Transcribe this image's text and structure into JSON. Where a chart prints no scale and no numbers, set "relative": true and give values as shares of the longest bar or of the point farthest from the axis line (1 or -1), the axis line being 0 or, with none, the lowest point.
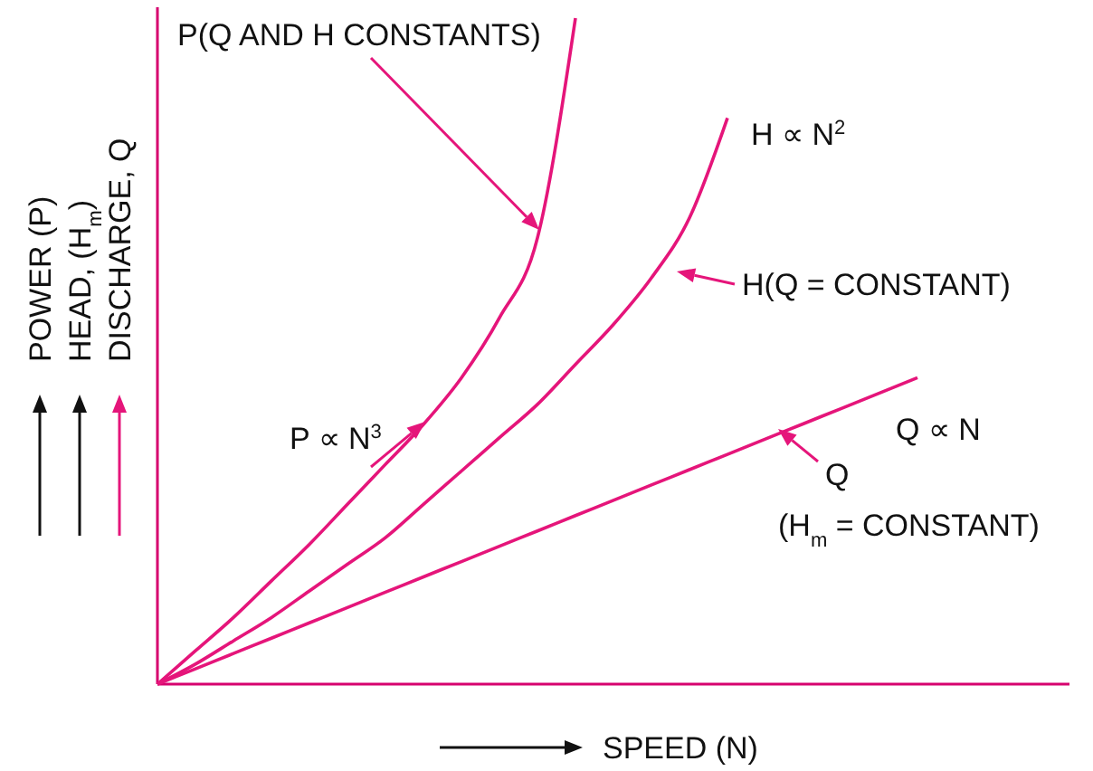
{
  "chart_data": {
    "type": "line",
    "relative": true,
    "xlabel": "SPEED (N)",
    "ylabel": "POWER (P)\nHEAD, (H$_{m}$)\nDISCHARGE, Q",
    "categories": [
      null,
      null,
      null,
      null,
      null,
      null,
      null,
      null,
      null,
      null,
      null,
      null,
      null,
      null,
      null,
      null,
      null,
      null,
      null,
      null,
      null,
      null,
      null,
      null,
      null
    ],
    "series": [
      {
        "color": "#e5157a",
        "values": [
          0,
          0.05,
          0.1,
          0.155,
          0.21,
          0.27,
          0.33,
          0.39,
          0.46,
          0.55,
          0.67,
          1,
          null,
          null,
          null,
          null,
          null,
          null,
          null,
          null,
          null,
          null,
          null,
          null,
          null
        ]
      },
      {
        "color": "#e5157a",
        "values": [
          0,
          0.03,
          0.065,
          0.1,
          0.14,
          0.18,
          0.22,
          0.27,
          0.32,
          0.37,
          0.42,
          0.48,
          0.54,
          0.61,
          0.7,
          0.85,
          null,
          null,
          null,
          null,
          null,
          null,
          null,
          null,
          null
        ]
      },
      {
        "color": "#e5157a",
        "values": [
          0,
          0.023,
          0.046,
          0.069,
          0.092,
          0.115,
          0.138,
          0.161,
          0.184,
          0.207,
          0.23,
          0.253,
          0.276,
          0.299,
          0.322,
          0.345,
          0.368,
          0.391,
          0.414,
          0.437,
          0.46,
          null,
          null,
          null,
          null
        ]
      }
    ],
    "annotations": [
      "P ∝ N$^{3}$",
      "P(Q AND H CONSTANTS)",
      "H ∝ N$^{2}$",
      "H(Q = CONSTANT)",
      "Q ∝ N",
      "Q",
      "(H$_{m}$ = CONSTANT)"
    ],
    "grid": false,
    "marker": "none",
    "line_style": "solid"
  }
}
